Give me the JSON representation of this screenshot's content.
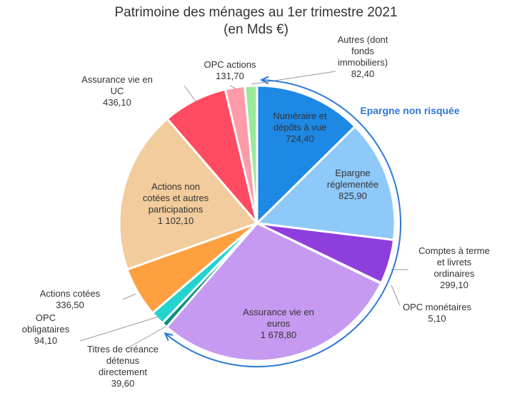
{
  "chart_data": {
    "type": "pie",
    "title": "Patrimoine des ménages au 1er trimestre 2021",
    "subtitle": "(en Mds €)",
    "slices": [
      {
        "label": "Numéraire et dépôts à vue",
        "value_text": "724,40",
        "value": 724.4,
        "color": "#1E88E5"
      },
      {
        "label": "Epargne réglementée",
        "value_text": "825,90",
        "value": 825.9,
        "color": "#8EC9F9"
      },
      {
        "label": "Comptes à terme et livrets ordinaires",
        "value_text": "299,10",
        "value": 299.1,
        "color": "#8E3FDB"
      },
      {
        "label": "OPC monétaires",
        "value_text": "5,10",
        "value": 5.1,
        "color": "#6A1FB0"
      },
      {
        "label": "Assurance vie en euros",
        "value_text": "1 678,80",
        "value": 1678.8,
        "color": "#C69AF0"
      },
      {
        "label": "Titres de créance détenus directement",
        "value_text": "39,60",
        "value": 39.6,
        "color": "#0E8F86"
      },
      {
        "label": "OPC obligataires",
        "value_text": "94,10",
        "value": 94.1,
        "color": "#22D3CF"
      },
      {
        "label": "Actions cotées",
        "value_text": "336,50",
        "value": 336.5,
        "color": "#FFA040"
      },
      {
        "label": "Actions non cotées et autres participations",
        "value_text": "1 102,10",
        "value": 1102.1,
        "color": "#F2CC9C"
      },
      {
        "label": "Assurance vie en UC",
        "value_text": "436,10",
        "value": 436.1,
        "color": "#FF4B61"
      },
      {
        "label": "OPC actions",
        "value_text": "131,70",
        "value": 131.7,
        "color": "#FF9AA8"
      },
      {
        "label": "Autres (dont fonds immobiliers)",
        "value_text": "82,40",
        "value": 82.4,
        "color": "#9BE89B"
      }
    ],
    "annotation": {
      "text": "Epargne non risquée",
      "color": "#2F78D8"
    }
  }
}
